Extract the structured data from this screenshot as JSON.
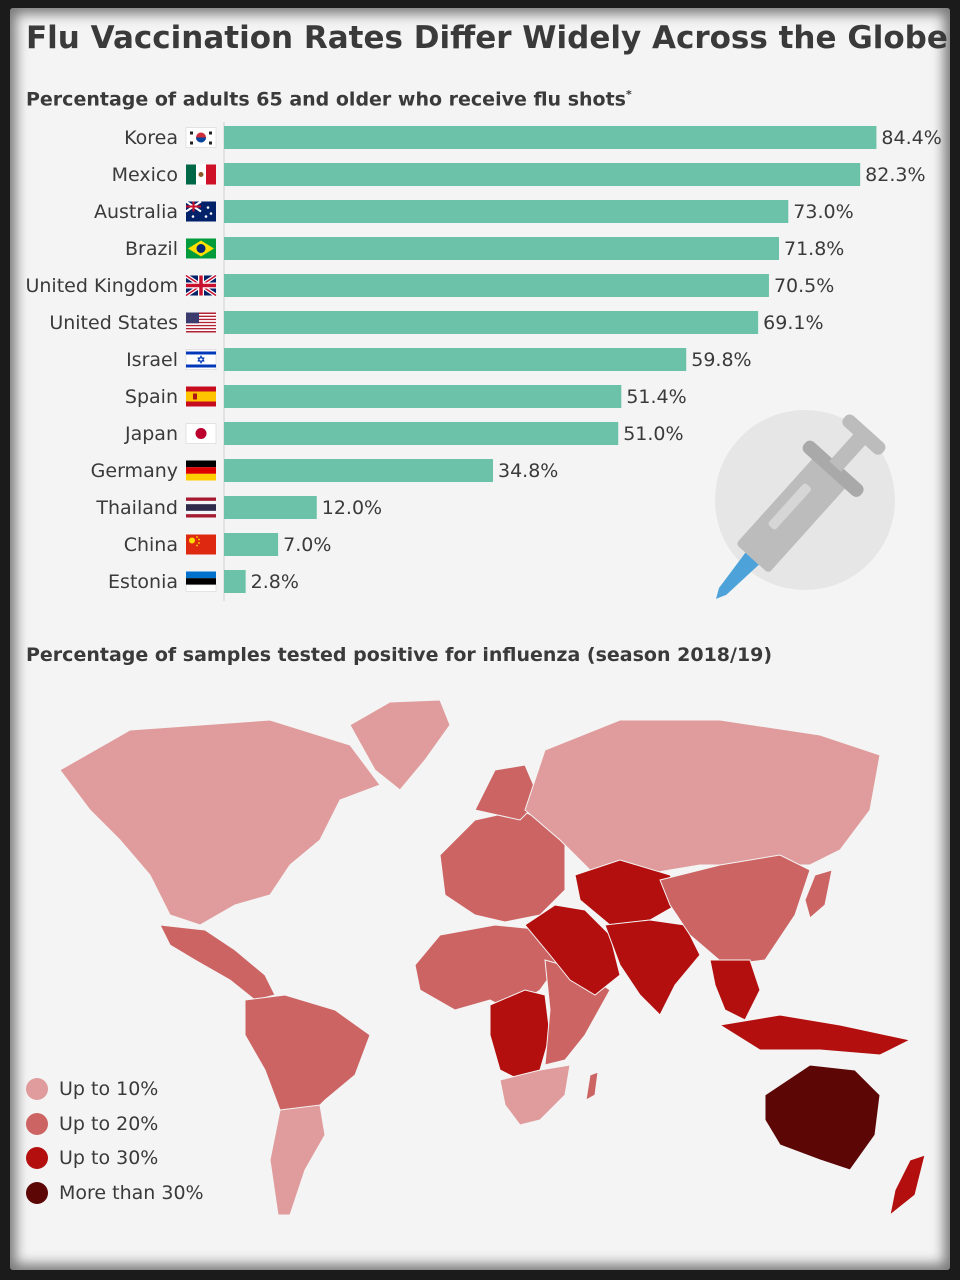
{
  "header": {
    "title": "Flu Vaccination Rates Differ Widely Across the Globe",
    "subtitle_bars": "Percentage of adults 65 and older who receive flu shots",
    "subtitle_bars_mark": "*",
    "subtitle_map": "Percentage of samples tested positive for influenza (season 2018/19)"
  },
  "colors": {
    "bar": "#6cc2a8",
    "text": "#3a3a3a",
    "map_up_to_10": "#e09c9c",
    "map_up_to_20": "#cd6464",
    "map_up_to_30": "#b30f0f",
    "map_more_than_30": "#5c0606",
    "syringe_circle": "#e6e6e6",
    "syringe_needle": "#4da3d9"
  },
  "chart_data": {
    "type": "bar",
    "orientation": "horizontal",
    "title": "Percentage of adults 65 and older who receive flu shots",
    "categories": [
      "Korea",
      "Mexico",
      "Australia",
      "Brazil",
      "United Kingdom",
      "United States",
      "Israel",
      "Spain",
      "Japan",
      "Germany",
      "Thailand",
      "China",
      "Estonia"
    ],
    "values": [
      84.4,
      82.3,
      73.0,
      71.8,
      70.5,
      69.1,
      59.8,
      51.4,
      51.0,
      34.8,
      12.0,
      7.0,
      2.8
    ],
    "value_labels": [
      "84.4%",
      "82.3%",
      "73.0%",
      "71.8%",
      "70.5%",
      "69.1%",
      "59.8%",
      "51.4%",
      "51.0%",
      "34.8%",
      "12.0%",
      "7.0%",
      "2.8%"
    ],
    "flags": [
      "flag-korea",
      "flag-mexico",
      "flag-australia",
      "flag-brazil",
      "flag-united-kingdom",
      "flag-united-states",
      "flag-israel",
      "flag-spain",
      "flag-japan",
      "flag-germany",
      "flag-thailand",
      "flag-china",
      "flag-estonia"
    ],
    "xlim": [
      0,
      100
    ],
    "grid": false,
    "legend": "none"
  },
  "map": {
    "legend": [
      {
        "label": "Up to 10%",
        "color": "#e09c9c"
      },
      {
        "label": "Up to 20%",
        "color": "#cd6464"
      },
      {
        "label": "Up to 30%",
        "color": "#b30f0f"
      },
      {
        "label": "More than 30%",
        "color": "#5c0606"
      }
    ],
    "regions": [
      {
        "id": "north-america",
        "cat": 0
      },
      {
        "id": "greenland",
        "cat": 0
      },
      {
        "id": "central-america",
        "cat": 1
      },
      {
        "id": "south-america-north",
        "cat": 1
      },
      {
        "id": "south-america-south",
        "cat": 0
      },
      {
        "id": "europe",
        "cat": 1
      },
      {
        "id": "scandinavia",
        "cat": 1
      },
      {
        "id": "russia",
        "cat": 0
      },
      {
        "id": "north-africa",
        "cat": 1
      },
      {
        "id": "central-africa",
        "cat": 2
      },
      {
        "id": "east-africa",
        "cat": 1
      },
      {
        "id": "southern-africa",
        "cat": 0
      },
      {
        "id": "madagascar",
        "cat": 1
      },
      {
        "id": "middle-east",
        "cat": 2
      },
      {
        "id": "central-asia",
        "cat": 2
      },
      {
        "id": "south-asia",
        "cat": 2
      },
      {
        "id": "china",
        "cat": 1
      },
      {
        "id": "southeast-asia",
        "cat": 2
      },
      {
        "id": "japan",
        "cat": 1
      },
      {
        "id": "indonesia",
        "cat": 2
      },
      {
        "id": "australia",
        "cat": 3
      },
      {
        "id": "new-zealand",
        "cat": 2
      }
    ]
  }
}
